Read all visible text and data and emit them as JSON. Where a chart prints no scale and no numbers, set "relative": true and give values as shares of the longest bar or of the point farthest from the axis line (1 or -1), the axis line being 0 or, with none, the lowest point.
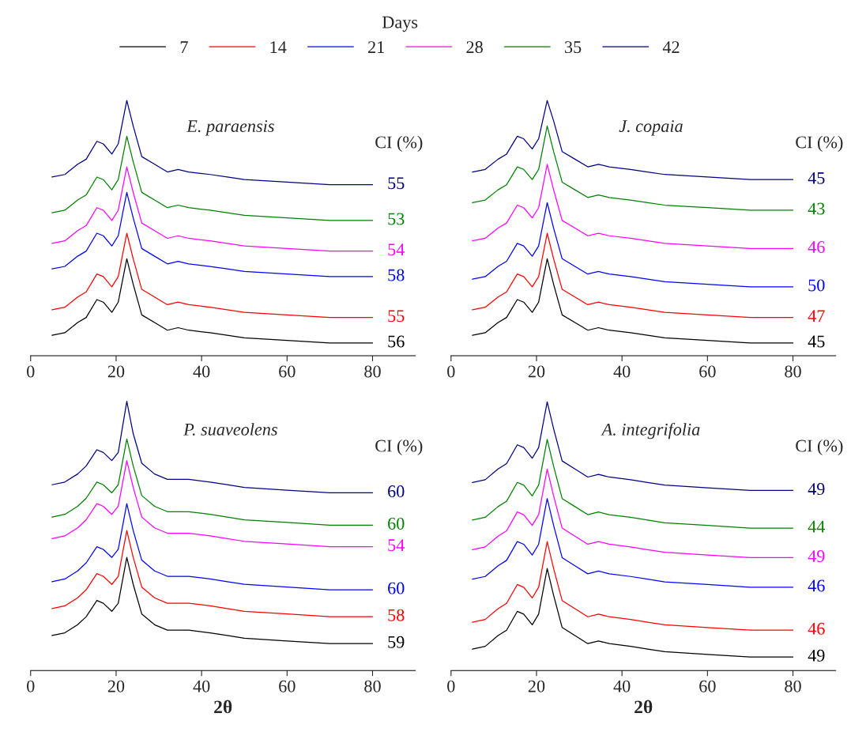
{
  "chart_data": [
    {
      "type": "line",
      "title": "E. paraensis",
      "relative": true,
      "legend": "top",
      "legend_title": "Days",
      "tick_labels": "x",
      "xlim": [
        0,
        90
      ],
      "xticks": [
        0,
        20,
        40,
        60,
        80
      ],
      "x": [
        5,
        8,
        11,
        13,
        15.5,
        17,
        19,
        20.5,
        22.5,
        24,
        26,
        29,
        32,
        34.5,
        37,
        42,
        46,
        50,
        60,
        70,
        80
      ],
      "series": [
        {
          "name": "7",
          "color": "#000000",
          "values": [
            0.08,
            0.09,
            0.13,
            0.15,
            0.22,
            0.21,
            0.17,
            0.21,
            0.38,
            0.28,
            0.16,
            0.13,
            0.1,
            0.11,
            0.1,
            0.09,
            0.08,
            0.07,
            0.06,
            0.05,
            0.05
          ]
        },
        {
          "name": "14",
          "color": "#ff0000",
          "values": [
            0.18,
            0.19,
            0.23,
            0.25,
            0.32,
            0.31,
            0.27,
            0.31,
            0.48,
            0.38,
            0.26,
            0.23,
            0.2,
            0.21,
            0.2,
            0.19,
            0.18,
            0.17,
            0.16,
            0.15,
            0.15
          ]
        },
        {
          "name": "21",
          "color": "#0000ff",
          "values": [
            0.34,
            0.35,
            0.39,
            0.41,
            0.48,
            0.47,
            0.43,
            0.47,
            0.64,
            0.54,
            0.42,
            0.39,
            0.36,
            0.37,
            0.36,
            0.35,
            0.34,
            0.33,
            0.32,
            0.31,
            0.31
          ]
        },
        {
          "name": "28",
          "color": "#ff00ff",
          "values": [
            0.44,
            0.45,
            0.49,
            0.51,
            0.58,
            0.57,
            0.53,
            0.57,
            0.74,
            0.64,
            0.52,
            0.49,
            0.46,
            0.47,
            0.46,
            0.45,
            0.44,
            0.43,
            0.42,
            0.41,
            0.41
          ]
        },
        {
          "name": "35",
          "color": "#008000",
          "values": [
            0.56,
            0.57,
            0.61,
            0.63,
            0.7,
            0.69,
            0.65,
            0.69,
            0.86,
            0.76,
            0.64,
            0.61,
            0.58,
            0.59,
            0.58,
            0.57,
            0.56,
            0.55,
            0.54,
            0.53,
            0.53
          ]
        },
        {
          "name": "42",
          "color": "#000080",
          "values": [
            0.7,
            0.71,
            0.75,
            0.77,
            0.84,
            0.83,
            0.79,
            0.83,
            1.0,
            0.9,
            0.78,
            0.75,
            0.72,
            0.73,
            0.72,
            0.71,
            0.7,
            0.69,
            0.68,
            0.67,
            0.67
          ]
        }
      ],
      "annotations": [
        "CI (%)",
        "56",
        "55",
        "58",
        "54",
        "53",
        "55"
      ]
    },
    {
      "type": "line",
      "title": "J. copaia",
      "relative": true,
      "tick_labels": "x",
      "xlim": [
        0,
        90
      ],
      "xticks": [
        0,
        20,
        40,
        60,
        80
      ],
      "x": [
        5,
        8,
        11,
        13,
        15.5,
        17,
        19,
        20.5,
        22.5,
        24,
        26,
        29,
        32,
        34.5,
        37,
        42,
        46,
        50,
        60,
        70,
        80
      ],
      "series": [
        {
          "color": "#000000",
          "values": [
            0.08,
            0.09,
            0.13,
            0.15,
            0.22,
            0.21,
            0.17,
            0.21,
            0.38,
            0.28,
            0.16,
            0.13,
            0.1,
            0.11,
            0.1,
            0.09,
            0.08,
            0.07,
            0.06,
            0.05,
            0.05
          ]
        },
        {
          "color": "#ff0000",
          "values": [
            0.18,
            0.19,
            0.23,
            0.25,
            0.32,
            0.31,
            0.27,
            0.31,
            0.48,
            0.38,
            0.26,
            0.23,
            0.2,
            0.21,
            0.2,
            0.19,
            0.18,
            0.17,
            0.16,
            0.15,
            0.15
          ]
        },
        {
          "color": "#0000ff",
          "values": [
            0.3,
            0.31,
            0.35,
            0.37,
            0.44,
            0.43,
            0.39,
            0.43,
            0.6,
            0.5,
            0.38,
            0.35,
            0.32,
            0.33,
            0.32,
            0.31,
            0.3,
            0.29,
            0.28,
            0.27,
            0.27
          ]
        },
        {
          "color": "#ff00ff",
          "values": [
            0.45,
            0.46,
            0.5,
            0.52,
            0.59,
            0.58,
            0.54,
            0.58,
            0.75,
            0.65,
            0.53,
            0.5,
            0.47,
            0.48,
            0.47,
            0.46,
            0.45,
            0.44,
            0.43,
            0.42,
            0.42
          ]
        },
        {
          "color": "#008000",
          "values": [
            0.6,
            0.61,
            0.65,
            0.67,
            0.74,
            0.73,
            0.69,
            0.73,
            0.9,
            0.8,
            0.68,
            0.65,
            0.62,
            0.63,
            0.62,
            0.61,
            0.6,
            0.59,
            0.58,
            0.57,
            0.57
          ]
        },
        {
          "color": "#000080",
          "values": [
            0.72,
            0.73,
            0.77,
            0.79,
            0.86,
            0.85,
            0.81,
            0.85,
            1.0,
            0.92,
            0.8,
            0.77,
            0.74,
            0.75,
            0.74,
            0.73,
            0.72,
            0.71,
            0.7,
            0.69,
            0.69
          ]
        }
      ],
      "annotations": [
        "CI (%)",
        "45",
        "47",
        "50",
        "46",
        "43",
        "45"
      ]
    },
    {
      "type": "line",
      "title": "P. suaveolens",
      "xlabel": "2θ",
      "relative": true,
      "tick_labels": "x",
      "xlim": [
        0,
        90
      ],
      "xticks": [
        0,
        20,
        40,
        60,
        80
      ],
      "x": [
        5,
        8,
        11,
        13,
        15.5,
        17,
        19,
        20.5,
        22.5,
        24,
        26,
        29,
        32,
        34.5,
        37,
        42,
        46,
        50,
        60,
        70,
        80
      ],
      "series": [
        {
          "color": "#000000",
          "values": [
            0.13,
            0.14,
            0.17,
            0.2,
            0.26,
            0.25,
            0.22,
            0.25,
            0.42,
            0.32,
            0.21,
            0.17,
            0.15,
            0.15,
            0.15,
            0.14,
            0.13,
            0.12,
            0.11,
            0.1,
            0.1
          ]
        },
        {
          "color": "#ff0000",
          "values": [
            0.23,
            0.24,
            0.27,
            0.3,
            0.36,
            0.35,
            0.32,
            0.35,
            0.52,
            0.42,
            0.31,
            0.27,
            0.25,
            0.25,
            0.25,
            0.24,
            0.23,
            0.22,
            0.21,
            0.2,
            0.2
          ]
        },
        {
          "color": "#0000ff",
          "values": [
            0.33,
            0.34,
            0.37,
            0.4,
            0.46,
            0.45,
            0.42,
            0.45,
            0.62,
            0.52,
            0.41,
            0.37,
            0.35,
            0.35,
            0.35,
            0.34,
            0.33,
            0.32,
            0.31,
            0.3,
            0.3
          ]
        },
        {
          "color": "#ff00ff",
          "values": [
            0.49,
            0.5,
            0.53,
            0.56,
            0.62,
            0.61,
            0.58,
            0.61,
            0.78,
            0.68,
            0.57,
            0.53,
            0.51,
            0.51,
            0.51,
            0.5,
            0.49,
            0.48,
            0.47,
            0.46,
            0.46
          ]
        },
        {
          "color": "#008000",
          "values": [
            0.57,
            0.58,
            0.61,
            0.64,
            0.7,
            0.69,
            0.66,
            0.69,
            0.86,
            0.76,
            0.65,
            0.61,
            0.59,
            0.59,
            0.59,
            0.58,
            0.57,
            0.56,
            0.55,
            0.54,
            0.54
          ]
        },
        {
          "color": "#000080",
          "values": [
            0.69,
            0.7,
            0.73,
            0.76,
            0.82,
            0.81,
            0.78,
            0.81,
            1.0,
            0.88,
            0.77,
            0.73,
            0.71,
            0.71,
            0.71,
            0.7,
            0.69,
            0.68,
            0.67,
            0.66,
            0.66
          ]
        }
      ],
      "annotations": [
        "CI (%)",
        "59",
        "58",
        "60",
        "54",
        "60",
        "60"
      ]
    },
    {
      "type": "line",
      "title": "A. integrifolia",
      "xlabel": "2θ",
      "relative": true,
      "tick_labels": "x",
      "xlim": [
        0,
        90
      ],
      "xticks": [
        0,
        20,
        40,
        60,
        80
      ],
      "x": [
        5,
        8,
        11,
        13,
        15.5,
        17,
        19,
        20.5,
        22.5,
        24,
        26,
        29,
        32,
        34.5,
        37,
        42,
        46,
        50,
        60,
        70,
        80
      ],
      "series": [
        {
          "color": "#000000",
          "values": [
            0.08,
            0.09,
            0.13,
            0.15,
            0.22,
            0.21,
            0.17,
            0.21,
            0.38,
            0.28,
            0.16,
            0.13,
            0.1,
            0.11,
            0.1,
            0.09,
            0.08,
            0.07,
            0.06,
            0.05,
            0.05
          ]
        },
        {
          "color": "#ff0000",
          "values": [
            0.18,
            0.19,
            0.23,
            0.25,
            0.32,
            0.31,
            0.27,
            0.31,
            0.48,
            0.38,
            0.26,
            0.23,
            0.2,
            0.21,
            0.2,
            0.19,
            0.18,
            0.17,
            0.16,
            0.15,
            0.15
          ]
        },
        {
          "color": "#0000ff",
          "values": [
            0.34,
            0.35,
            0.39,
            0.41,
            0.48,
            0.47,
            0.43,
            0.47,
            0.64,
            0.54,
            0.42,
            0.39,
            0.36,
            0.37,
            0.36,
            0.35,
            0.34,
            0.33,
            0.32,
            0.31,
            0.31
          ]
        },
        {
          "color": "#ff00ff",
          "values": [
            0.45,
            0.46,
            0.5,
            0.52,
            0.59,
            0.58,
            0.54,
            0.58,
            0.75,
            0.65,
            0.53,
            0.5,
            0.47,
            0.48,
            0.47,
            0.46,
            0.45,
            0.44,
            0.43,
            0.42,
            0.42
          ]
        },
        {
          "color": "#008000",
          "values": [
            0.56,
            0.57,
            0.61,
            0.63,
            0.7,
            0.69,
            0.65,
            0.69,
            0.86,
            0.76,
            0.64,
            0.61,
            0.58,
            0.59,
            0.58,
            0.57,
            0.56,
            0.55,
            0.54,
            0.53,
            0.53
          ]
        },
        {
          "color": "#000080",
          "values": [
            0.7,
            0.71,
            0.75,
            0.77,
            0.84,
            0.83,
            0.79,
            0.83,
            1.0,
            0.9,
            0.78,
            0.75,
            0.72,
            0.73,
            0.72,
            0.71,
            0.7,
            0.69,
            0.68,
            0.67,
            0.67
          ]
        }
      ],
      "annotations": [
        "CI (%)",
        "49",
        "46",
        "46",
        "49",
        "44",
        "49"
      ]
    }
  ]
}
